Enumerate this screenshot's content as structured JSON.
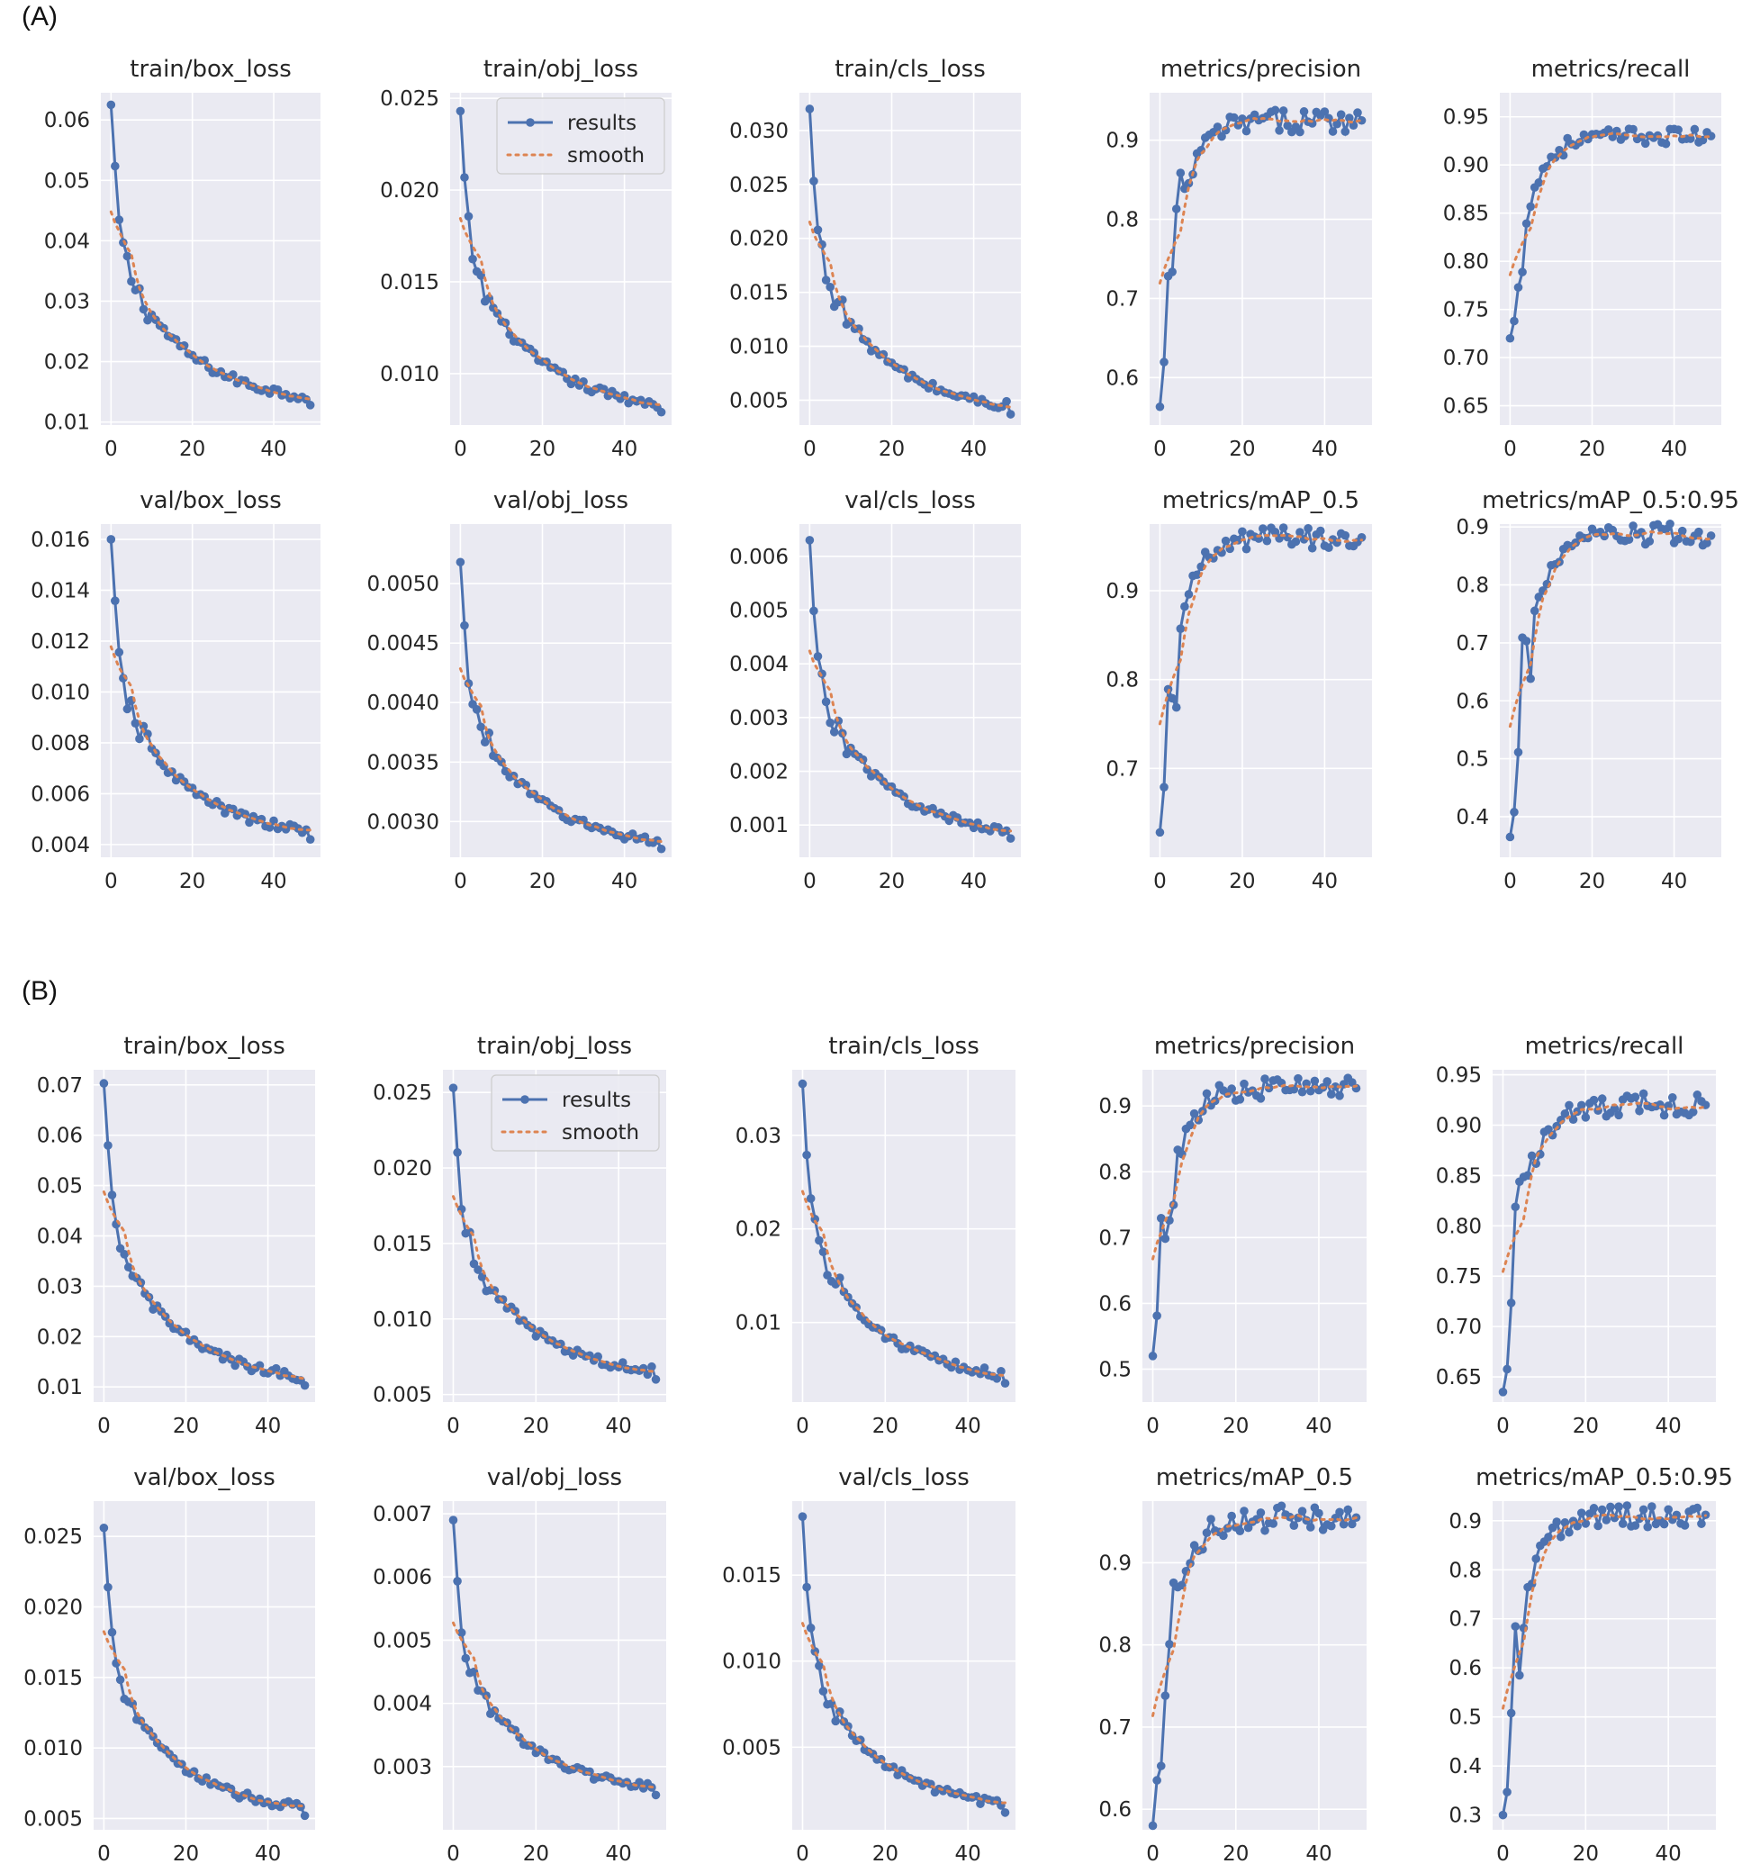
{
  "panels": [
    {
      "label": "(A)"
    },
    {
      "label": "(B)"
    }
  ],
  "legend": {
    "results": "results",
    "smooth": "smooth"
  },
  "colors": {
    "results": "#4c72b0",
    "smooth": "#dd8452",
    "plot_bg": "#eaeaf2",
    "grid": "#ffffff"
  },
  "chart_data": [
    {
      "type": "line",
      "panel": "(A)",
      "title": "train/box_loss",
      "xlim": [
        0,
        49
      ],
      "ylim": [
        0.0095,
        0.0645
      ],
      "xticks": [
        "0",
        "20",
        "40"
      ],
      "yticks": [
        "0.01",
        "0.02",
        "0.03",
        "0.04",
        "0.05",
        "0.06"
      ],
      "legend": false,
      "series": [
        {
          "name": "results",
          "x": [
            0,
            49
          ],
          "values_spec": "decay",
          "y_start": 0.0625,
          "y_end": 0.0128
        }
      ],
      "summary": {
        "start": 0.0625,
        "end": 0.0128
      }
    },
    {
      "type": "line",
      "panel": "(A)",
      "title": "train/obj_loss",
      "xlim": [
        0,
        49
      ],
      "ylim": [
        0.0072,
        0.0253
      ],
      "xticks": [
        "0",
        "20",
        "40"
      ],
      "yticks": [
        "0.010",
        "0.015",
        "0.020",
        "0.025"
      ],
      "legend": true,
      "summary": {
        "start": 0.0243,
        "end": 0.0079
      }
    },
    {
      "type": "line",
      "panel": "(A)",
      "title": "train/cls_loss",
      "xlim": [
        0,
        49
      ],
      "ylim": [
        0.0027,
        0.0335
      ],
      "xticks": [
        "0",
        "20",
        "40"
      ],
      "yticks": [
        "0.005",
        "0.010",
        "0.015",
        "0.020",
        "0.025",
        "0.030"
      ],
      "legend": false,
      "summary": {
        "start": 0.032,
        "end": 0.0037
      }
    },
    {
      "type": "line",
      "panel": "(A)",
      "title": "metrics/precision",
      "xlim": [
        0,
        49
      ],
      "ylim": [
        0.54,
        0.96
      ],
      "xticks": [
        "0",
        "20",
        "40"
      ],
      "yticks": [
        "0.6",
        "0.7",
        "0.8",
        "0.9"
      ],
      "legend": false,
      "summary": {
        "start": 0.563,
        "end": 0.925
      }
    },
    {
      "type": "line",
      "panel": "(A)",
      "title": "metrics/recall",
      "xlim": [
        0,
        49
      ],
      "ylim": [
        0.63,
        0.975
      ],
      "xticks": [
        "0",
        "20",
        "40"
      ],
      "yticks": [
        "0.65",
        "0.70",
        "0.75",
        "0.80",
        "0.85",
        "0.90",
        "0.95"
      ],
      "legend": false,
      "summary": {
        "start": 0.72,
        "end": 0.93
      }
    },
    {
      "type": "line",
      "panel": "(A)",
      "title": "val/box_loss",
      "xlim": [
        0,
        49
      ],
      "ylim": [
        0.0035,
        0.0166
      ],
      "xticks": [
        "0",
        "20",
        "40"
      ],
      "yticks": [
        "0.004",
        "0.006",
        "0.008",
        "0.010",
        "0.012",
        "0.014",
        "0.016"
      ],
      "legend": false,
      "summary": {
        "start": 0.016,
        "end": 0.0042
      }
    },
    {
      "type": "line",
      "panel": "(A)",
      "title": "val/obj_loss",
      "xlim": [
        0,
        49
      ],
      "ylim": [
        0.0027,
        0.0055
      ],
      "xticks": [
        "0",
        "20",
        "40"
      ],
      "yticks": [
        "0.0030",
        "0.0035",
        "0.0040",
        "0.0045",
        "0.0050"
      ],
      "legend": false,
      "summary": {
        "start": 0.00518,
        "end": 0.00277
      }
    },
    {
      "type": "line",
      "panel": "(A)",
      "title": "val/cls_loss",
      "xlim": [
        0,
        49
      ],
      "ylim": [
        0.0004,
        0.0066
      ],
      "xticks": [
        "0",
        "20",
        "40"
      ],
      "yticks": [
        "0.001",
        "0.002",
        "0.003",
        "0.004",
        "0.005",
        "0.006"
      ],
      "legend": false,
      "summary": {
        "start": 0.0063,
        "end": 0.00075
      }
    },
    {
      "type": "line",
      "panel": "(A)",
      "title": "metrics/mAP_0.5",
      "xlim": [
        0,
        49
      ],
      "ylim": [
        0.6,
        0.975
      ],
      "xticks": [
        "0",
        "20",
        "40"
      ],
      "yticks": [
        "0.7",
        "0.8",
        "0.9"
      ],
      "legend": false,
      "summary": {
        "start": 0.628,
        "end": 0.96
      }
    },
    {
      "type": "line",
      "panel": "(A)",
      "title": "metrics/mAP_0.5:0.95",
      "xlim": [
        0,
        49
      ],
      "ylim": [
        0.33,
        0.905
      ],
      "xticks": [
        "0",
        "20",
        "40"
      ],
      "yticks": [
        "0.4",
        "0.5",
        "0.6",
        "0.7",
        "0.8",
        "0.9"
      ],
      "legend": false,
      "summary": {
        "start": 0.365,
        "end": 0.885
      }
    },
    {
      "type": "line",
      "panel": "(B)",
      "title": "train/box_loss",
      "xlim": [
        0,
        49
      ],
      "ylim": [
        0.007,
        0.073
      ],
      "xticks": [
        "0",
        "20",
        "40"
      ],
      "yticks": [
        "0.01",
        "0.02",
        "0.03",
        "0.04",
        "0.05",
        "0.06",
        "0.07"
      ],
      "legend": false,
      "summary": {
        "start": 0.0703,
        "end": 0.0103
      }
    },
    {
      "type": "line",
      "panel": "(B)",
      "title": "train/obj_loss",
      "xlim": [
        0,
        49
      ],
      "ylim": [
        0.0045,
        0.0265
      ],
      "xticks": [
        "0",
        "20",
        "40"
      ],
      "yticks": [
        "0.005",
        "0.010",
        "0.015",
        "0.020",
        "0.025"
      ],
      "legend": true,
      "summary": {
        "start": 0.0253,
        "end": 0.006
      }
    },
    {
      "type": "line",
      "panel": "(B)",
      "title": "train/cls_loss",
      "xlim": [
        0,
        49
      ],
      "ylim": [
        0.0015,
        0.037
      ],
      "xticks": [
        "0",
        "20",
        "40"
      ],
      "yticks": [
        "0.01",
        "0.02",
        "0.03"
      ],
      "legend": false,
      "summary": {
        "start": 0.0355,
        "end": 0.0035
      }
    },
    {
      "type": "line",
      "panel": "(B)",
      "title": "metrics/precision",
      "xlim": [
        0,
        49
      ],
      "ylim": [
        0.45,
        0.955
      ],
      "xticks": [
        "0",
        "20",
        "40"
      ],
      "yticks": [
        "0.5",
        "0.6",
        "0.7",
        "0.8",
        "0.9"
      ],
      "legend": false,
      "summary": {
        "start": 0.52,
        "end": 0.927
      }
    },
    {
      "type": "line",
      "panel": "(B)",
      "title": "metrics/recall",
      "xlim": [
        0,
        49
      ],
      "ylim": [
        0.625,
        0.955
      ],
      "xticks": [
        "0",
        "20",
        "40"
      ],
      "yticks": [
        "0.65",
        "0.70",
        "0.75",
        "0.80",
        "0.85",
        "0.90",
        "0.95"
      ],
      "legend": false,
      "summary": {
        "start": 0.635,
        "end": 0.92
      }
    },
    {
      "type": "line",
      "panel": "(B)",
      "title": "val/box_loss",
      "xlim": [
        0,
        49
      ],
      "ylim": [
        0.0042,
        0.0275
      ],
      "xticks": [
        "0",
        "20",
        "40"
      ],
      "yticks": [
        "0.005",
        "0.010",
        "0.015",
        "0.020",
        "0.025"
      ],
      "legend": false,
      "summary": {
        "start": 0.0256,
        "end": 0.0052
      }
    },
    {
      "type": "line",
      "panel": "(B)",
      "title": "val/obj_loss",
      "xlim": [
        0,
        49
      ],
      "ylim": [
        0.002,
        0.0072
      ],
      "xticks": [
        "0",
        "20",
        "40"
      ],
      "yticks": [
        "0.003",
        "0.004",
        "0.005",
        "0.006",
        "0.007"
      ],
      "legend": false,
      "summary": {
        "start": 0.0069,
        "end": 0.00255
      }
    },
    {
      "type": "line",
      "panel": "(B)",
      "title": "val/cls_loss",
      "xlim": [
        0,
        49
      ],
      "ylim": [
        0.0002,
        0.0193
      ],
      "xticks": [
        "0",
        "20",
        "40"
      ],
      "yticks": [
        "0.005",
        "0.010",
        "0.015"
      ],
      "legend": false,
      "summary": {
        "start": 0.0184,
        "end": 0.0012
      }
    },
    {
      "type": "line",
      "panel": "(B)",
      "title": "metrics/mAP_0.5",
      "xlim": [
        0,
        49
      ],
      "ylim": [
        0.575,
        0.975
      ],
      "xticks": [
        "0",
        "20",
        "40"
      ],
      "yticks": [
        "0.6",
        "0.7",
        "0.8",
        "0.9"
      ],
      "legend": false,
      "summary": {
        "start": 0.58,
        "end": 0.955
      }
    },
    {
      "type": "line",
      "panel": "(B)",
      "title": "metrics/mAP_0.5:0.95",
      "xlim": [
        0,
        49
      ],
      "ylim": [
        0.27,
        0.94
      ],
      "xticks": [
        "0",
        "20",
        "40"
      ],
      "yticks": [
        "0.3",
        "0.4",
        "0.5",
        "0.6",
        "0.7",
        "0.8",
        "0.9"
      ],
      "legend": false,
      "summary": {
        "start": 0.3,
        "end": 0.912
      }
    }
  ]
}
